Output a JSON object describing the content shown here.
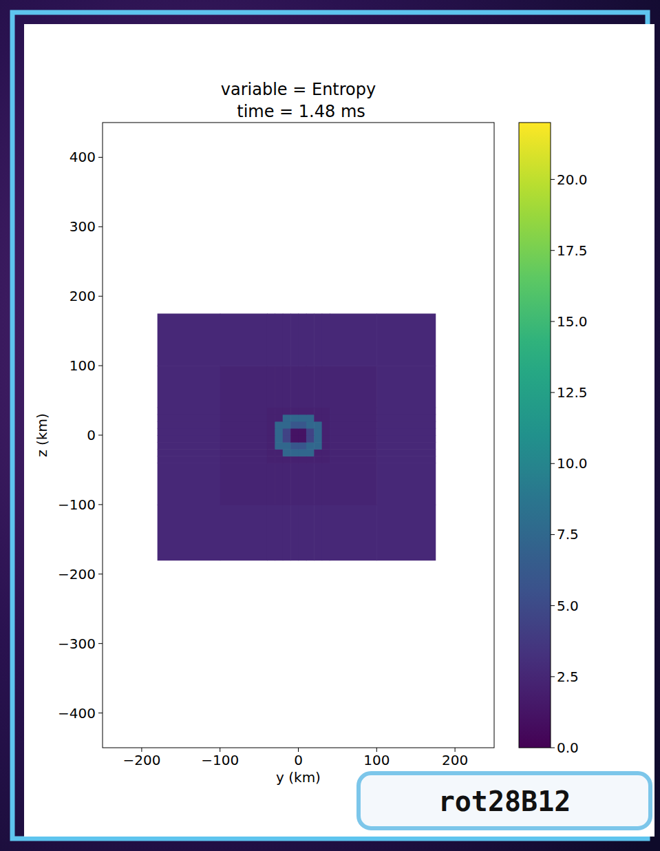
{
  "chart_data": {
    "type": "heatmap",
    "title": "variable = Entropy",
    "subtitle": "time = 1.48 ms",
    "x_label": "y (km)",
    "y_label": "z (km)",
    "xlim": [
      -250,
      250
    ],
    "ylim": [
      -450,
      450
    ],
    "xticks": [
      {
        "value": -200,
        "label": "−200"
      },
      {
        "value": -100,
        "label": "−100"
      },
      0,
      100,
      200
    ],
    "yticks": [
      {
        "value": -400,
        "label": "−400"
      },
      {
        "value": -300,
        "label": "−300"
      },
      {
        "value": -200,
        "label": "−200"
      },
      {
        "value": -100,
        "label": "−100"
      },
      0,
      100,
      200,
      300,
      400
    ],
    "x_edges": [
      -180,
      -100,
      -40,
      -30,
      -20,
      -10,
      0,
      10,
      20,
      30,
      40,
      100,
      175
    ],
    "y_edges": [
      -180,
      -100,
      -40,
      -30,
      -20,
      -10,
      0,
      10,
      20,
      30,
      40,
      100,
      175
    ],
    "cells": [
      [
        2.6,
        2.6,
        2.6,
        2.6,
        2.6,
        2.6,
        2.6,
        2.6,
        2.6,
        2.6,
        2.6,
        2.6
      ],
      [
        2.6,
        2.3,
        2.3,
        2.3,
        2.3,
        2.3,
        2.3,
        2.3,
        2.3,
        2.3,
        2.3,
        2.6
      ],
      [
        2.6,
        2.3,
        2.1,
        2.1,
        2.1,
        2.1,
        2.1,
        2.1,
        2.1,
        2.1,
        2.3,
        2.6
      ],
      [
        2.6,
        2.3,
        2.1,
        2.1,
        7.5,
        7.5,
        7.5,
        7.5,
        2.1,
        2.1,
        2.3,
        2.6
      ],
      [
        2.6,
        2.3,
        2.1,
        7.5,
        7.5,
        6.0,
        6.0,
        7.5,
        7.5,
        2.1,
        2.3,
        2.6
      ],
      [
        2.6,
        2.3,
        2.1,
        7.5,
        4.5,
        1.2,
        1.2,
        4.5,
        7.5,
        2.1,
        2.3,
        2.6
      ],
      [
        2.6,
        2.3,
        2.1,
        7.5,
        4.5,
        1.2,
        1.2,
        4.5,
        7.5,
        2.1,
        2.3,
        2.6
      ],
      [
        2.6,
        2.3,
        2.1,
        7.5,
        7.5,
        6.0,
        6.0,
        7.5,
        7.5,
        2.1,
        2.3,
        2.6
      ],
      [
        2.6,
        2.3,
        2.1,
        2.1,
        7.5,
        7.5,
        7.5,
        7.5,
        2.1,
        2.1,
        2.3,
        2.6
      ],
      [
        2.6,
        2.3,
        2.1,
        2.1,
        2.1,
        2.1,
        2.1,
        2.1,
        2.1,
        2.1,
        2.3,
        2.6
      ],
      [
        2.6,
        2.3,
        2.3,
        2.3,
        2.3,
        2.3,
        2.3,
        2.3,
        2.3,
        2.3,
        2.3,
        2.6
      ],
      [
        2.6,
        2.6,
        2.6,
        2.6,
        2.6,
        2.6,
        2.6,
        2.6,
        2.6,
        2.6,
        2.6,
        2.6
      ]
    ],
    "colorbar": {
      "range": [
        0,
        22
      ],
      "ticks": [
        {
          "value": 0,
          "label": "0.0"
        },
        2.5,
        {
          "value": 5,
          "label": "5.0"
        },
        7.5,
        {
          "value": 10,
          "label": "10.0"
        },
        12.5,
        {
          "value": 15,
          "label": "15.0"
        },
        17.5,
        {
          "value": 20,
          "label": "20.0"
        }
      ]
    },
    "badge": "rot28B12"
  }
}
